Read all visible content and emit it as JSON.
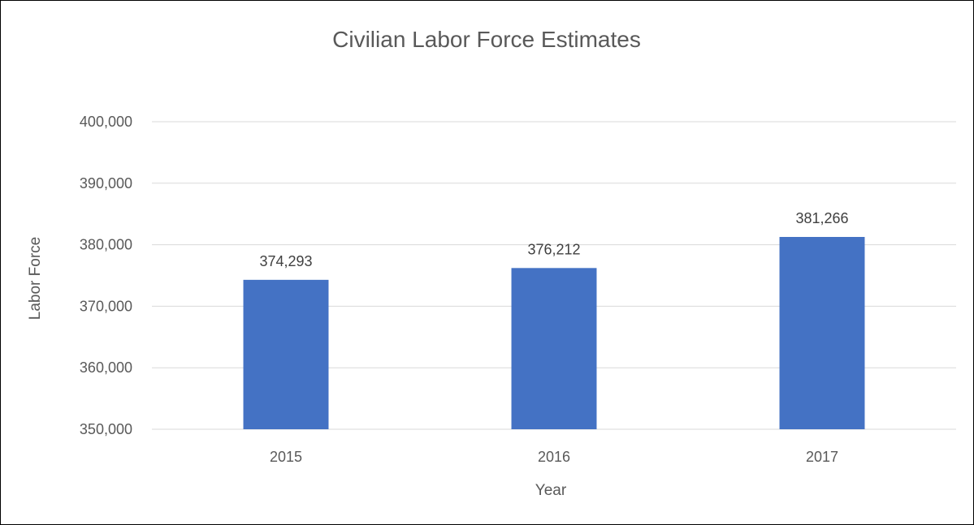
{
  "chart_data": {
    "type": "bar",
    "title": "Civilian Labor Force Estimates",
    "xlabel": "Year",
    "ylabel": "Labor Force",
    "categories": [
      "2015",
      "2016",
      "2017"
    ],
    "values": [
      374293,
      376212,
      381266
    ],
    "data_labels": [
      "374,293",
      "376,212",
      "381,266"
    ],
    "ylim": [
      350000,
      400000
    ],
    "y_ticks": [
      350000,
      360000,
      370000,
      380000,
      390000,
      400000
    ],
    "y_tick_labels": [
      "350,000",
      "360,000",
      "370,000",
      "380,000",
      "390,000",
      "400,000"
    ],
    "bar_color": "#4472C4",
    "grid": true,
    "legend": "none"
  }
}
